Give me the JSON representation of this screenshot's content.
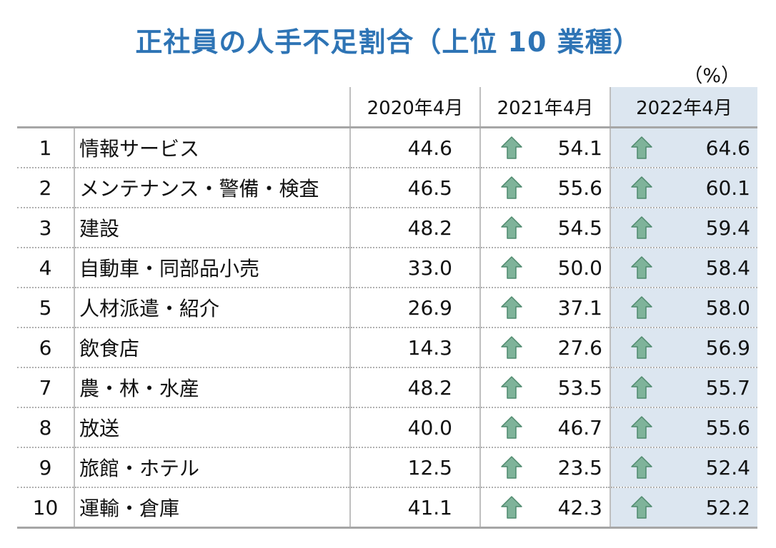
{
  "chart_data": {
    "type": "table",
    "title": "正社員の人手不足割合（上位 10 業種）",
    "unit": "（%）",
    "columns": [
      "2020年4月",
      "2021年4月",
      "2022年4月"
    ],
    "highlight_column": "2022年4月",
    "trend_icon": "up-arrow-icon",
    "colors": {
      "title": "#2e74b5",
      "highlight": "#dce6f0",
      "arrow": "#7fb39a"
    },
    "rows": [
      {
        "rank": "1",
        "industry": "情報サービス",
        "v2020": "44.6",
        "v2021": "54.1",
        "v2022": "64.6"
      },
      {
        "rank": "2",
        "industry": "メンテナンス・警備・検査",
        "v2020": "46.5",
        "v2021": "55.6",
        "v2022": "60.1"
      },
      {
        "rank": "3",
        "industry": "建設",
        "v2020": "48.2",
        "v2021": "54.5",
        "v2022": "59.4"
      },
      {
        "rank": "4",
        "industry": "自動車・同部品小売",
        "v2020": "33.0",
        "v2021": "50.0",
        "v2022": "58.4"
      },
      {
        "rank": "5",
        "industry": "人材派遣・紹介",
        "v2020": "26.9",
        "v2021": "37.1",
        "v2022": "58.0"
      },
      {
        "rank": "6",
        "industry": "飲食店",
        "v2020": "14.3",
        "v2021": "27.6",
        "v2022": "56.9"
      },
      {
        "rank": "7",
        "industry": "農・林・水産",
        "v2020": "48.2",
        "v2021": "53.5",
        "v2022": "55.7"
      },
      {
        "rank": "8",
        "industry": "放送",
        "v2020": "40.0",
        "v2021": "46.7",
        "v2022": "55.6"
      },
      {
        "rank": "9",
        "industry": "旅館・ホテル",
        "v2020": "12.5",
        "v2021": "23.5",
        "v2022": "52.4"
      },
      {
        "rank": "10",
        "industry": "運輸・倉庫",
        "v2020": "41.1",
        "v2021": "42.3",
        "v2022": "52.2"
      }
    ]
  }
}
